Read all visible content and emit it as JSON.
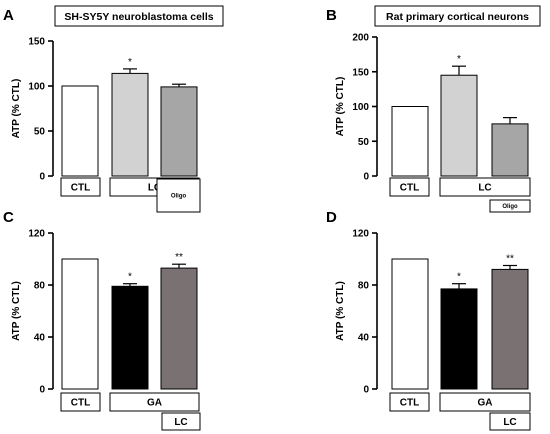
{
  "chart_data": [
    {
      "panel": "A",
      "type": "bar",
      "title": "SH-SY5Y neuroblastoma cells",
      "ylabel": "ATP (% CTL)",
      "ylim": [
        0,
        150
      ],
      "yticks": [
        0,
        50,
        100,
        150
      ],
      "values": [
        100,
        114,
        99
      ],
      "errors": [
        0,
        5,
        3
      ],
      "colors": [
        "#ffffff",
        "#d2d2d2",
        "#a6a6a6"
      ],
      "significance": [
        "",
        "*",
        ""
      ],
      "condition_boxes": [
        {
          "label": "CTL",
          "size": "large",
          "span": [
            0,
            0
          ]
        },
        {
          "label": "LC",
          "size": "large",
          "span": [
            1,
            2
          ]
        },
        {
          "label": "Oligo",
          "size": "small",
          "span": [
            2,
            2
          ]
        }
      ]
    },
    {
      "panel": "B",
      "type": "bar",
      "title": "Rat primary cortical neurons",
      "ylabel": "ATP (% CTL)",
      "ylim": [
        0,
        200
      ],
      "yticks": [
        0,
        50,
        100,
        150,
        200
      ],
      "values": [
        100,
        145,
        75
      ],
      "errors": [
        0,
        13,
        9
      ],
      "colors": [
        "#ffffff",
        "#d2d2d2",
        "#a6a6a6"
      ],
      "significance": [
        "",
        "*",
        ""
      ],
      "condition_boxes": [
        {
          "label": "CTL",
          "size": "large",
          "span": [
            0,
            0
          ]
        },
        {
          "label": "LC",
          "size": "large",
          "span": [
            1,
            2
          ]
        },
        {
          "label": "Oligo",
          "size": "small",
          "span": [
            2,
            2
          ]
        }
      ]
    },
    {
      "panel": "C",
      "type": "bar",
      "title": "",
      "ylabel": "ATP (% CTL)",
      "ylim": [
        0,
        120
      ],
      "yticks": [
        0,
        40,
        80,
        120
      ],
      "values": [
        100,
        79,
        93
      ],
      "errors": [
        0,
        2,
        3
      ],
      "colors": [
        "#ffffff",
        "#000000",
        "#7a7272"
      ],
      "significance": [
        "",
        "*",
        "**"
      ],
      "condition_boxes": [
        {
          "label": "CTL",
          "size": "large",
          "span": [
            0,
            0
          ]
        },
        {
          "label": "GA",
          "size": "large",
          "span": [
            1,
            2
          ]
        },
        {
          "label": "LC",
          "size": "medium",
          "span": [
            2,
            2
          ]
        }
      ]
    },
    {
      "panel": "D",
      "type": "bar",
      "title": "",
      "ylabel": "ATP (% CTL)",
      "ylim": [
        0,
        120
      ],
      "yticks": [
        0,
        40,
        80,
        120
      ],
      "values": [
        100,
        77,
        92
      ],
      "errors": [
        0,
        4,
        3
      ],
      "colors": [
        "#ffffff",
        "#000000",
        "#7a7272"
      ],
      "significance": [
        "",
        "*",
        "**"
      ],
      "condition_boxes": [
        {
          "label": "CTL",
          "size": "large",
          "span": [
            0,
            0
          ]
        },
        {
          "label": "GA",
          "size": "large",
          "span": [
            1,
            2
          ]
        },
        {
          "label": "LC",
          "size": "medium",
          "span": [
            2,
            2
          ]
        }
      ]
    }
  ]
}
